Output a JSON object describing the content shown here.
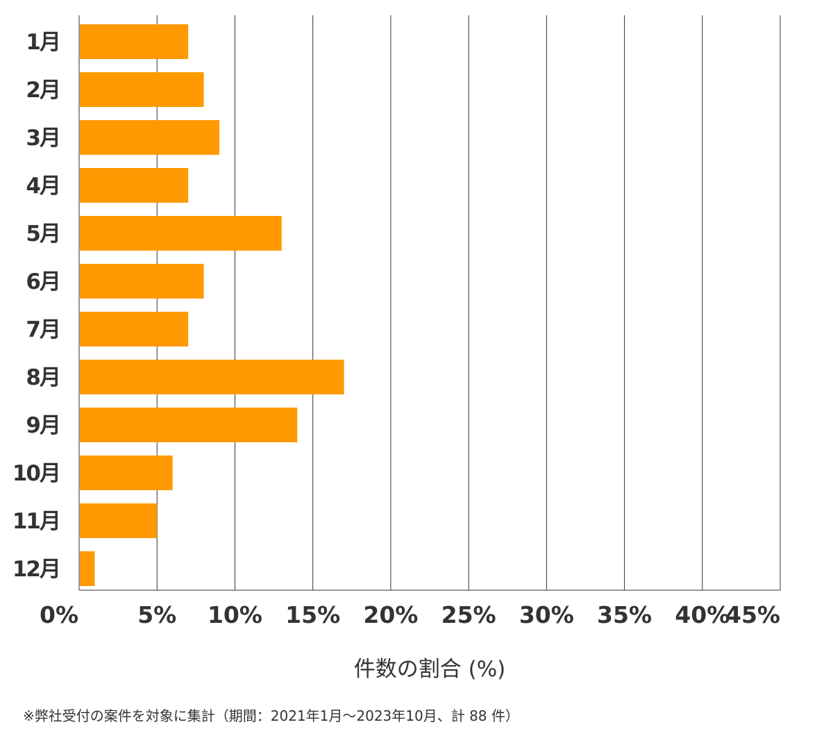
{
  "chart_data": {
    "type": "bar",
    "orientation": "horizontal",
    "categories": [
      "1月",
      "2月",
      "3月",
      "4月",
      "5月",
      "6月",
      "7月",
      "8月",
      "9月",
      "10月",
      "11月",
      "12月"
    ],
    "values": [
      7,
      8,
      9,
      7,
      13,
      8,
      7,
      17,
      14,
      6,
      5,
      1
    ],
    "xlim": [
      0,
      45
    ],
    "xticks": [
      0,
      5,
      10,
      15,
      20,
      25,
      30,
      35,
      40,
      45
    ],
    "xtick_labels": [
      "0%",
      "5%",
      "10%",
      "15%",
      "20%",
      "25%",
      "30%",
      "35%",
      "40%",
      "45%"
    ],
    "xlabel": "件数の割合 (%)",
    "ylabel": "",
    "grid": "vertical",
    "bar_color": "#FF9900",
    "grid_color": "#333333"
  },
  "footnote": "※弊社受付の案件を対象に集計（期間：2021年1月～2023年10月、計 88 件）"
}
